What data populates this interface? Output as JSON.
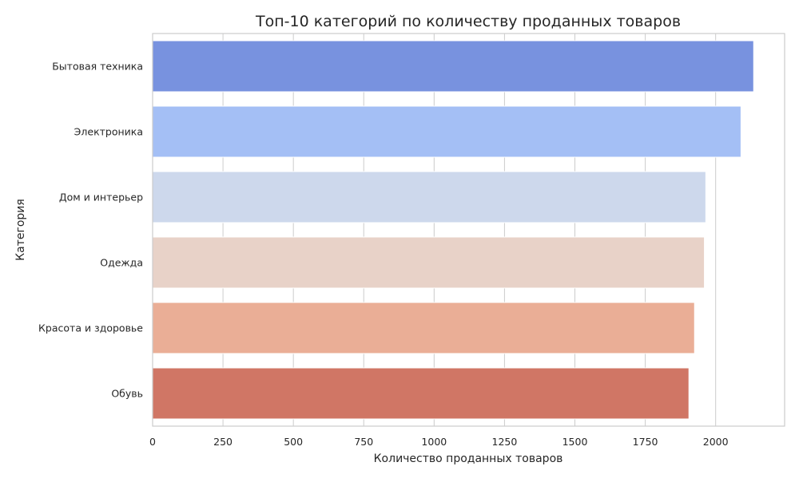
{
  "chart_data": {
    "type": "bar",
    "orientation": "horizontal",
    "title": "Топ-10 категорий по количеству проданных товаров",
    "xlabel": "Количество проданных товаров",
    "ylabel": "Категория",
    "categories": [
      "Бытовая техника",
      "Электроника",
      "Дом и интерьер",
      "Одежда",
      "Красота и здоровье",
      "Обувь"
    ],
    "values": [
      2135,
      2090,
      1965,
      1960,
      1925,
      1905
    ],
    "colors": [
      "#7892df",
      "#a4bff5",
      "#cdd8ec",
      "#e8d2c8",
      "#eaae96",
      "#d07665"
    ],
    "xticks": [
      0,
      250,
      500,
      750,
      1000,
      1250,
      1500,
      1750,
      2000
    ],
    "xtick_labels": [
      "0",
      "250",
      "500",
      "750",
      "1000",
      "1250",
      "1500",
      "1750",
      "2000"
    ],
    "xlim": [
      0,
      2245
    ],
    "grid": true,
    "grid_axis": "x"
  }
}
